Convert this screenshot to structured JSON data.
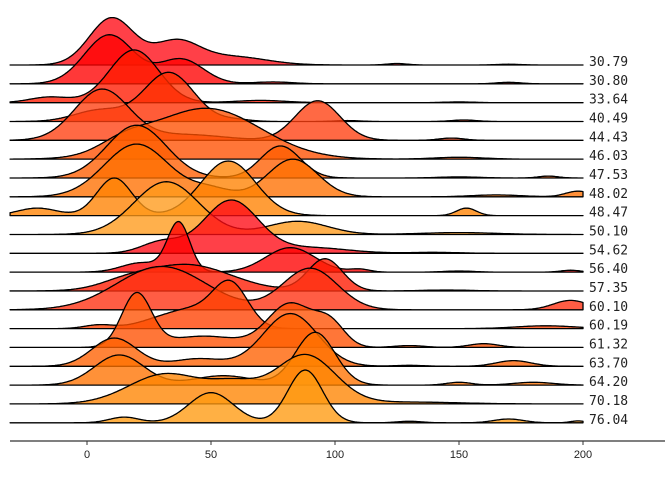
{
  "chart_data": {
    "type": "ridgeline",
    "title": "",
    "xlabel": "",
    "ylabel": "",
    "xlim": [
      -31,
      200
    ],
    "x_ticks": [
      0,
      50,
      100,
      150,
      200
    ],
    "x_tick_labels": [
      "0",
      "50",
      "100",
      "150",
      "200"
    ],
    "grid": false,
    "height_unit": "row spacing",
    "rows": [
      {
        "label": "30.79",
        "color": "#ff0a14",
        "components": [
          [
            10,
            9,
            2.5
          ],
          [
            36,
            9,
            1.2
          ],
          [
            58,
            14,
            0.45
          ],
          [
            125,
            4,
            0.08
          ],
          [
            170,
            5,
            0.04
          ]
        ]
      },
      {
        "label": "30.80",
        "color": "#ff0000",
        "components": [
          [
            9,
            10,
            2.6
          ],
          [
            38,
            9,
            1.3
          ],
          [
            75,
            8,
            0.1
          ],
          [
            170,
            5,
            0.08
          ]
        ]
      },
      {
        "label": "33.64",
        "color": "#ff1a00",
        "components": [
          [
            19,
            10,
            2.8
          ],
          [
            -15,
            8,
            0.3
          ],
          [
            70,
            10,
            0.12
          ],
          [
            150,
            6,
            0.04
          ]
        ]
      },
      {
        "label": "40.49",
        "color": "#ff2e00",
        "components": [
          [
            33,
            10,
            2.6
          ],
          [
            5,
            10,
            0.6
          ],
          [
            60,
            6,
            0.1
          ],
          [
            105,
            5,
            0.05
          ],
          [
            152,
            5,
            0.08
          ]
        ]
      },
      {
        "label": "44.43",
        "color": "#ff3f10",
        "components": [
          [
            6,
            11,
            2.7
          ],
          [
            93,
            9,
            2.1
          ],
          [
            40,
            15,
            0.3
          ],
          [
            147,
            5,
            0.12
          ]
        ]
      },
      {
        "label": "46.03",
        "color": "#ff5000",
        "components": [
          [
            48,
            22,
            2.7
          ],
          [
            15,
            10,
            0.6
          ],
          [
            150,
            10,
            0.1
          ]
        ]
      },
      {
        "label": "47.53",
        "color": "#ff5e00",
        "components": [
          [
            20,
            12,
            2.8
          ],
          [
            78,
            8,
            1.7
          ],
          [
            150,
            8,
            0.06
          ],
          [
            186,
            4,
            0.1
          ]
        ]
      },
      {
        "label": "48.02",
        "color": "#ff7000",
        "components": [
          [
            20,
            13,
            2.8
          ],
          [
            83,
            10,
            2.0
          ],
          [
            50,
            8,
            0.4
          ],
          [
            165,
            10,
            0.1
          ],
          [
            198,
            5,
            0.3
          ]
        ]
      },
      {
        "label": "48.47",
        "color": "#ff8200",
        "components": [
          [
            11,
            7,
            2.0
          ],
          [
            57,
            11,
            2.9
          ],
          [
            -20,
            8,
            0.4
          ],
          [
            153,
            4,
            0.4
          ]
        ]
      },
      {
        "label": "50.10",
        "color": "#ff9a1a",
        "components": [
          [
            32,
            13,
            2.8
          ],
          [
            85,
            12,
            0.7
          ],
          [
            150,
            15,
            0.1
          ]
        ]
      },
      {
        "label": "54.62",
        "color": "#ff0a14",
        "components": [
          [
            58,
            11,
            2.8
          ],
          [
            30,
            8,
            0.6
          ],
          [
            90,
            15,
            0.3
          ],
          [
            140,
            10,
            0.05
          ]
        ]
      },
      {
        "label": "56.40",
        "color": "#ff0000",
        "components": [
          [
            37,
            4.5,
            2.6
          ],
          [
            22,
            8,
            0.5
          ],
          [
            82,
            10,
            1.3
          ],
          [
            110,
            4,
            0.15
          ],
          [
            150,
            6,
            0.06
          ],
          [
            195,
            4,
            0.1
          ]
        ]
      },
      {
        "label": "57.35",
        "color": "#ff1a00",
        "components": [
          [
            40,
            18,
            1.4
          ],
          [
            96,
            7,
            1.7
          ],
          [
            15,
            10,
            0.3
          ],
          [
            145,
            10,
            0.05
          ]
        ]
      },
      {
        "label": "60.10",
        "color": "#ff3010",
        "components": [
          [
            30,
            18,
            2.3
          ],
          [
            90,
            11,
            2.2
          ],
          [
            195,
            7,
            0.5
          ]
        ]
      },
      {
        "label": "60.19",
        "color": "#ff4000",
        "components": [
          [
            58,
            7,
            2.2
          ],
          [
            42,
            11,
            1.0
          ],
          [
            5,
            6,
            0.2
          ],
          [
            25,
            8,
            0.2
          ],
          [
            185,
            12,
            0.15
          ]
        ]
      },
      {
        "label": "61.32",
        "color": "#ff5000",
        "components": [
          [
            20,
            6,
            2.8
          ],
          [
            82,
            9,
            2.3
          ],
          [
            98,
            6,
            1.2
          ],
          [
            47,
            15,
            0.6
          ],
          [
            130,
            6,
            0.1
          ],
          [
            160,
            6,
            0.2
          ]
        ]
      },
      {
        "label": "63.70",
        "color": "#ff6000",
        "components": [
          [
            11,
            9,
            1.5
          ],
          [
            82,
            11,
            2.8
          ],
          [
            45,
            10,
            0.4
          ],
          [
            172,
            7,
            0.3
          ],
          [
            130,
            6,
            0.05
          ]
        ]
      },
      {
        "label": "64.20",
        "color": "#ff7200",
        "components": [
          [
            13,
            10,
            1.6
          ],
          [
            92,
            8,
            2.8
          ],
          [
            55,
            12,
            0.5
          ],
          [
            150,
            5,
            0.15
          ],
          [
            180,
            8,
            0.15
          ]
        ]
      },
      {
        "label": "70.18",
        "color": "#ff8400",
        "components": [
          [
            32,
            15,
            1.6
          ],
          [
            88,
            12,
            2.6
          ],
          [
            60,
            10,
            0.9
          ],
          [
            130,
            20,
            0.1
          ]
        ]
      },
      {
        "label": "76.04",
        "color": "#ff9a10",
        "components": [
          [
            50,
            9,
            1.6
          ],
          [
            88,
            7,
            2.8
          ],
          [
            15,
            6,
            0.3
          ],
          [
            130,
            5,
            0.08
          ],
          [
            170,
            6,
            0.2
          ],
          [
            198,
            3,
            0.1
          ]
        ]
      }
    ]
  }
}
